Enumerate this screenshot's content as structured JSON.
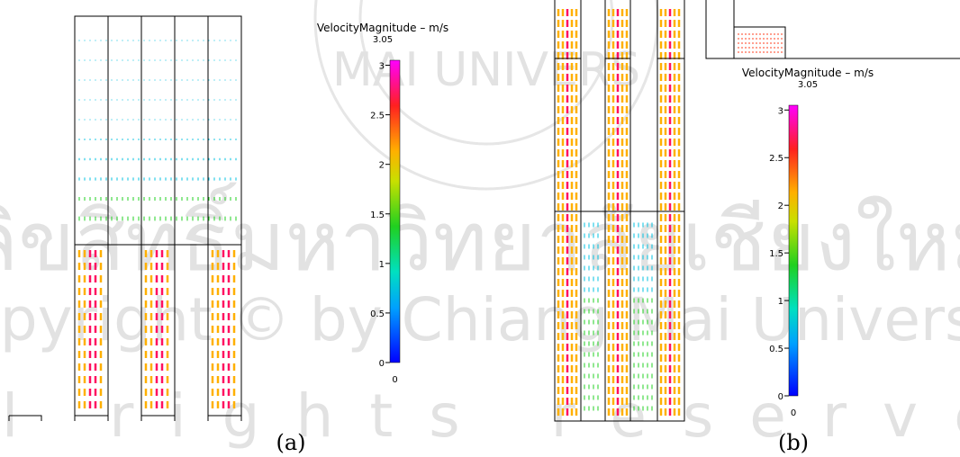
{
  "watermark": {
    "seal": "MAI UNIVERS",
    "thai": "ลิขสิทธิ์มหาวิทยาลัยเชียงใหม่",
    "english": "Copyright © by Chiang Mai University",
    "rights": "All rights reserved"
  },
  "panels": [
    {
      "label": "(a)",
      "colorbar": {
        "title": "VelocityMagnitude  –  m/s",
        "range": [
          0,
          3.05
        ],
        "ticks": [
          0,
          0.5,
          1,
          1.5,
          2,
          2.5,
          3
        ]
      }
    },
    {
      "label": "(b)",
      "colorbar": {
        "title": "VelocityMagnitude  –  m/s",
        "range": [
          0,
          3.05
        ],
        "ticks": [
          0,
          0.5,
          1,
          1.5,
          2,
          2.5,
          3
        ]
      }
    }
  ]
}
